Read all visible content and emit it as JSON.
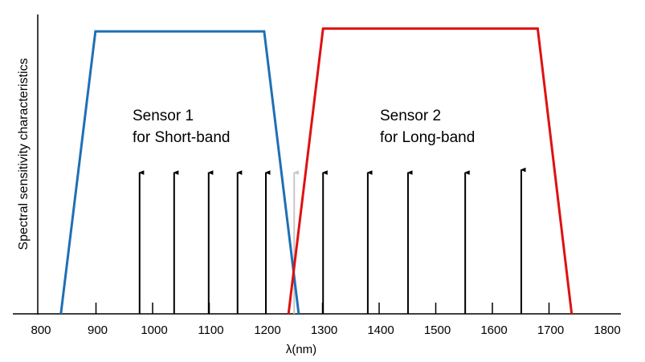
{
  "chart_data": {
    "type": "line",
    "xlabel": "λ(nm)",
    "ylabel": "Spectral sensitivity characteristics",
    "xlim": [
      800,
      1800
    ],
    "ylim": [
      0,
      1.06
    ],
    "xticks": [
      800,
      900,
      1000,
      1100,
      1200,
      1300,
      1400,
      1500,
      1600,
      1700,
      1800
    ],
    "series": [
      {
        "color": "#1f6fb5",
        "x": [
          838,
          899,
          1197,
          1258
        ],
        "values": [
          0,
          1,
          1,
          0
        ]
      },
      {
        "color": "#e01010",
        "x": [
          1240,
          1301,
          1680,
          1740
        ],
        "values": [
          0,
          1.01,
          1.01,
          0
        ]
      }
    ],
    "arrows": {
      "x": [
        977,
        1038,
        1099,
        1150,
        1200,
        1250,
        1301,
        1380,
        1451,
        1552,
        1651
      ],
      "values": [
        0.5,
        0.5,
        0.5,
        0.5,
        0.5,
        0.5,
        0.5,
        0.5,
        0.5,
        0.5,
        0.51
      ],
      "colors": [
        "#000",
        "#000",
        "#000",
        "#000",
        "#000",
        "#c8c8c8",
        "#000",
        "#000",
        "#000",
        "#000",
        "#000"
      ]
    },
    "annotations": [
      {
        "lines": [
          "Sensor 1",
          "for Short-band"
        ]
      },
      {
        "lines": [
          "Sensor 2",
          "for Long-band"
        ]
      }
    ]
  }
}
